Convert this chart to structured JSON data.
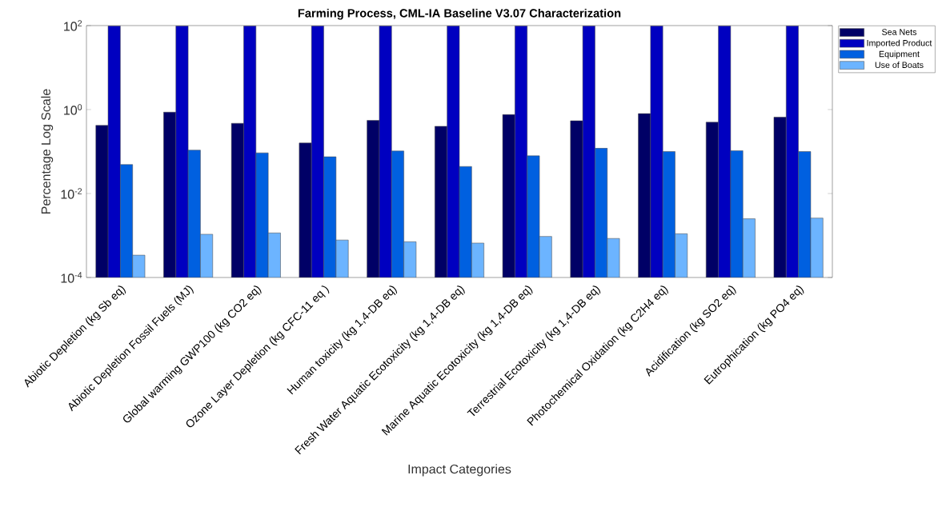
{
  "chart_data": {
    "type": "bar",
    "title": "Farming Process, CML-IA Baseline V3.07 Characterization",
    "xlabel": "Impact Categories",
    "ylabel": "Percentage Log Scale",
    "categories": [
      "Abiotic Depletion (kg Sb eq)",
      "Abiotic Depletion Fossil Fuels (MJ)",
      "Global warming GWP100 (kg CO2 eq)",
      "Ozone Layer Depletion (kg CFC-11 eq )",
      "Human toxicity (kg 1,4-DB eq)",
      "Fresh Water Aquatic Ecotoxicity (kg 1,4-DB eq)",
      "Marine Aquatic Ecotoxicity (kg 1,4-DB eq)",
      "Terrestrial Ecotoxicity (kg 1,4-DB eq)",
      "Photochemical Oxidation (kg C2H4 eq)",
      "Acidification (kg SO2 eq)",
      "Eutrophication (kg PO4 eq)"
    ],
    "series": [
      {
        "name": "Sea Nets",
        "color": "#000066",
        "values": [
          0.42,
          0.87,
          0.47,
          0.16,
          0.55,
          0.4,
          0.76,
          0.54,
          0.8,
          0.5,
          0.66
        ]
      },
      {
        "name": "Imported Product",
        "color": "#0000c0",
        "values": [
          98,
          98,
          98,
          98,
          98,
          98,
          98,
          98,
          98,
          98,
          98
        ]
      },
      {
        "name": "Equipment",
        "color": "#0060e0",
        "values": [
          0.049,
          0.108,
          0.093,
          0.075,
          0.103,
          0.044,
          0.079,
          0.12,
          0.1,
          0.105,
          0.1
        ]
      },
      {
        "name": "Use of Boats",
        "color": "#6cb4ff",
        "values": [
          0.00034,
          0.00107,
          0.00115,
          0.00078,
          0.00071,
          0.00066,
          0.00095,
          0.00085,
          0.0011,
          0.0025,
          0.0026
        ]
      }
    ],
    "log": true,
    "ylim": [
      0.0001,
      100
    ],
    "yticks": [
      {
        "value": 0.0001,
        "label": "10$^{-4}$"
      },
      {
        "value": 0.01,
        "label": "10$^{-2}$"
      },
      {
        "value": 1,
        "label": "10$^{0}$"
      },
      {
        "value": 100,
        "label": "10$^{2}$"
      }
    ],
    "legend": "right"
  }
}
